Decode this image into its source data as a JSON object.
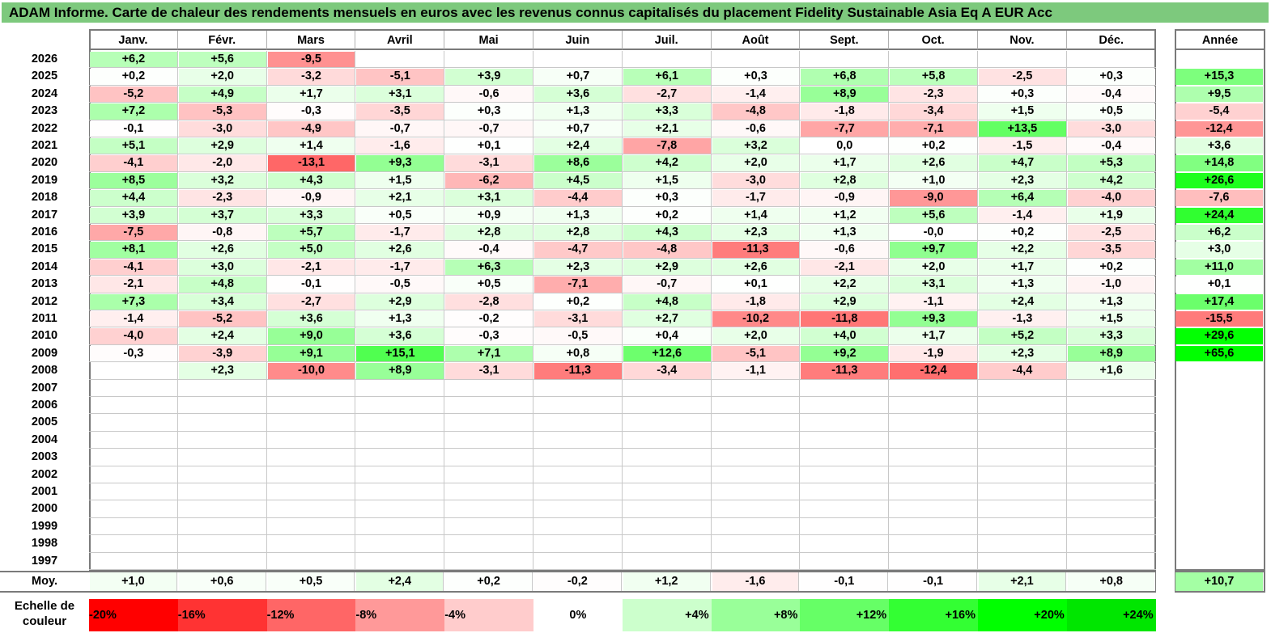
{
  "title": "ADAM Informe. Carte de chaleur des rendements mensuels en euros avec les revenus connus capitalisés du placement Fidelity Sustainable Asia Eq A EUR Acc",
  "chart_data": {
    "type": "heatmap",
    "title": "ADAM Informe. Carte de chaleur des rendements mensuels en euros avec les revenus connus capitalisés du placement Fidelity Sustainable Asia Eq A EUR Acc",
    "columns": [
      "Janv.",
      "Févr.",
      "Mars",
      "Avril",
      "Mai",
      "Juin",
      "Juil.",
      "Août",
      "Sept.",
      "Oct.",
      "Nov.",
      "Déc."
    ],
    "year_header": "Année",
    "rows": [
      {
        "year": "2026",
        "months": [
          "+6,2",
          "+5,6",
          "-9,5",
          "",
          "",
          "",
          "",
          "",
          "",
          "",
          "",
          ""
        ],
        "annual": ""
      },
      {
        "year": "2025",
        "months": [
          "+0,2",
          "+2,0",
          "-3,2",
          "-5,1",
          "+3,9",
          "+0,7",
          "+6,1",
          "+0,3",
          "+6,8",
          "+5,8",
          "-2,5",
          "+0,3"
        ],
        "annual": "+15,3"
      },
      {
        "year": "2024",
        "months": [
          "-5,2",
          "+4,9",
          "+1,7",
          "+3,1",
          "-0,6",
          "+3,6",
          "-2,7",
          "-1,4",
          "+8,9",
          "-2,3",
          "+0,3",
          "-0,4"
        ],
        "annual": "+9,5"
      },
      {
        "year": "2023",
        "months": [
          "+7,2",
          "-5,3",
          "-0,3",
          "-3,5",
          "+0,3",
          "+1,3",
          "+3,3",
          "-4,8",
          "-1,8",
          "-3,4",
          "+1,5",
          "+0,5"
        ],
        "annual": "-5,4"
      },
      {
        "year": "2022",
        "months": [
          "-0,1",
          "-3,0",
          "-4,9",
          "-0,7",
          "-0,7",
          "+0,7",
          "+2,1",
          "-0,6",
          "-7,7",
          "-7,1",
          "+13,5",
          "-3,0"
        ],
        "annual": "-12,4"
      },
      {
        "year": "2021",
        "months": [
          "+5,1",
          "+2,9",
          "+1,4",
          "-1,6",
          "+0,1",
          "+2,4",
          "-7,8",
          "+3,2",
          "0,0",
          "+0,2",
          "-1,5",
          "-0,4"
        ],
        "annual": "+3,6"
      },
      {
        "year": "2020",
        "months": [
          "-4,1",
          "-2,0",
          "-13,1",
          "+9,3",
          "-3,1",
          "+8,6",
          "+4,2",
          "+2,0",
          "+1,7",
          "+2,6",
          "+4,7",
          "+5,3"
        ],
        "annual": "+14,8"
      },
      {
        "year": "2019",
        "months": [
          "+8,5",
          "+3,2",
          "+4,3",
          "+1,5",
          "-6,2",
          "+4,5",
          "+1,5",
          "-3,0",
          "+2,8",
          "+1,0",
          "+2,3",
          "+4,2"
        ],
        "annual": "+26,6"
      },
      {
        "year": "2018",
        "months": [
          "+4,4",
          "-2,3",
          "-0,9",
          "+2,1",
          "+3,1",
          "-4,4",
          "+0,3",
          "-1,7",
          "-0,9",
          "-9,0",
          "+6,4",
          "-4,0"
        ],
        "annual": "-7,6"
      },
      {
        "year": "2017",
        "months": [
          "+3,9",
          "+3,7",
          "+3,3",
          "+0,5",
          "+0,9",
          "+1,3",
          "+0,2",
          "+1,4",
          "+1,2",
          "+5,6",
          "-1,4",
          "+1,9"
        ],
        "annual": "+24,4"
      },
      {
        "year": "2016",
        "months": [
          "-7,5",
          "-0,8",
          "+5,7",
          "-1,7",
          "+2,8",
          "+2,8",
          "+4,3",
          "+2,3",
          "+1,3",
          "-0,0",
          "+0,2",
          "-2,5"
        ],
        "annual": "+6,2"
      },
      {
        "year": "2015",
        "months": [
          "+8,1",
          "+2,6",
          "+5,0",
          "+2,6",
          "-0,4",
          "-4,7",
          "-4,8",
          "-11,3",
          "-0,6",
          "+9,7",
          "+2,2",
          "-3,5"
        ],
        "annual": "+3,0"
      },
      {
        "year": "2014",
        "months": [
          "-4,1",
          "+3,0",
          "-2,1",
          "-1,7",
          "+6,3",
          "+2,3",
          "+2,9",
          "+2,6",
          "-2,1",
          "+2,0",
          "+1,7",
          "+0,2"
        ],
        "annual": "+11,0"
      },
      {
        "year": "2013",
        "months": [
          "-2,1",
          "+4,8",
          "-0,1",
          "-0,5",
          "+0,5",
          "-7,1",
          "-0,7",
          "+0,1",
          "+2,2",
          "+3,1",
          "+1,3",
          "-1,0"
        ],
        "annual": "+0,1"
      },
      {
        "year": "2012",
        "months": [
          "+7,3",
          "+3,4",
          "-2,7",
          "+2,9",
          "-2,8",
          "+0,2",
          "+4,8",
          "-1,8",
          "+2,9",
          "-1,1",
          "+2,4",
          "+1,3"
        ],
        "annual": "+17,4"
      },
      {
        "year": "2011",
        "months": [
          "-1,4",
          "-5,2",
          "+3,6",
          "+1,3",
          "-0,2",
          "-3,1",
          "+2,7",
          "-10,2",
          "-11,8",
          "+9,3",
          "-1,3",
          "+1,5"
        ],
        "annual": "-15,5"
      },
      {
        "year": "2010",
        "months": [
          "-4,0",
          "+2,4",
          "+9,0",
          "+3,6",
          "-0,3",
          "-0,5",
          "+0,4",
          "+2,0",
          "+4,0",
          "+1,7",
          "+5,2",
          "+3,3"
        ],
        "annual": "+29,6"
      },
      {
        "year": "2009",
        "months": [
          "-0,3",
          "-3,9",
          "+9,1",
          "+15,1",
          "+7,1",
          "+0,8",
          "+12,6",
          "-5,1",
          "+9,2",
          "-1,9",
          "+2,3",
          "+8,9"
        ],
        "annual": "+65,6"
      },
      {
        "year": "2008",
        "months": [
          "",
          "+2,3",
          "-10,0",
          "+8,9",
          "-3,1",
          "-11,3",
          "-3,4",
          "-1,1",
          "-11,3",
          "-12,4",
          "-4,4",
          "+1,6"
        ],
        "annual": ""
      },
      {
        "year": "2007",
        "months": [
          "",
          "",
          "",
          "",
          "",
          "",
          "",
          "",
          "",
          "",
          "",
          ""
        ],
        "annual": ""
      },
      {
        "year": "2006",
        "months": [
          "",
          "",
          "",
          "",
          "",
          "",
          "",
          "",
          "",
          "",
          "",
          ""
        ],
        "annual": ""
      },
      {
        "year": "2005",
        "months": [
          "",
          "",
          "",
          "",
          "",
          "",
          "",
          "",
          "",
          "",
          "",
          ""
        ],
        "annual": ""
      },
      {
        "year": "2004",
        "months": [
          "",
          "",
          "",
          "",
          "",
          "",
          "",
          "",
          "",
          "",
          "",
          ""
        ],
        "annual": ""
      },
      {
        "year": "2003",
        "months": [
          "",
          "",
          "",
          "",
          "",
          "",
          "",
          "",
          "",
          "",
          "",
          ""
        ],
        "annual": ""
      },
      {
        "year": "2002",
        "months": [
          "",
          "",
          "",
          "",
          "",
          "",
          "",
          "",
          "",
          "",
          "",
          ""
        ],
        "annual": ""
      },
      {
        "year": "2001",
        "months": [
          "",
          "",
          "",
          "",
          "",
          "",
          "",
          "",
          "",
          "",
          "",
          ""
        ],
        "annual": ""
      },
      {
        "year": "2000",
        "months": [
          "",
          "",
          "",
          "",
          "",
          "",
          "",
          "",
          "",
          "",
          "",
          ""
        ],
        "annual": ""
      },
      {
        "year": "1999",
        "months": [
          "",
          "",
          "",
          "",
          "",
          "",
          "",
          "",
          "",
          "",
          "",
          ""
        ],
        "annual": ""
      },
      {
        "year": "1998",
        "months": [
          "",
          "",
          "",
          "",
          "",
          "",
          "",
          "",
          "",
          "",
          "",
          ""
        ],
        "annual": ""
      },
      {
        "year": "1997",
        "months": [
          "",
          "",
          "",
          "",
          "",
          "",
          "",
          "",
          "",
          "",
          "",
          ""
        ],
        "annual": ""
      }
    ],
    "average": {
      "label": "Moy.",
      "months": [
        "+1,0",
        "+0,6",
        "+0,5",
        "+2,4",
        "+0,2",
        "-0,2",
        "+1,2",
        "-1,6",
        "-0,1",
        "-0,1",
        "+2,1",
        "+0,8"
      ],
      "annual": "+10,7"
    },
    "scale": {
      "label": "Echelle de couleur",
      "stops": [
        {
          "label": "-20%",
          "value": -20,
          "color": "#ff0000"
        },
        {
          "label": "-16%",
          "value": -16,
          "color": "#ff3333"
        },
        {
          "label": "-12%",
          "value": -12,
          "color": "#ff6666"
        },
        {
          "label": "-8%",
          "value": -8,
          "color": "#ff9999"
        },
        {
          "label": "-4%",
          "value": -4,
          "color": "#ffcccc"
        },
        {
          "label": "0%",
          "value": 0,
          "color": "#ffffff"
        },
        {
          "label": "+4%",
          "value": 4,
          "color": "#ccffcc"
        },
        {
          "label": "+8%",
          "value": 8,
          "color": "#99ff99"
        },
        {
          "label": "+12%",
          "value": 12,
          "color": "#66ff66"
        },
        {
          "label": "+16%",
          "value": 16,
          "color": "#33ff33"
        },
        {
          "label": "+20%",
          "value": 20,
          "color": "#00ff00"
        },
        {
          "label": "+24%",
          "value": 24,
          "color": "#00e600"
        }
      ]
    }
  }
}
